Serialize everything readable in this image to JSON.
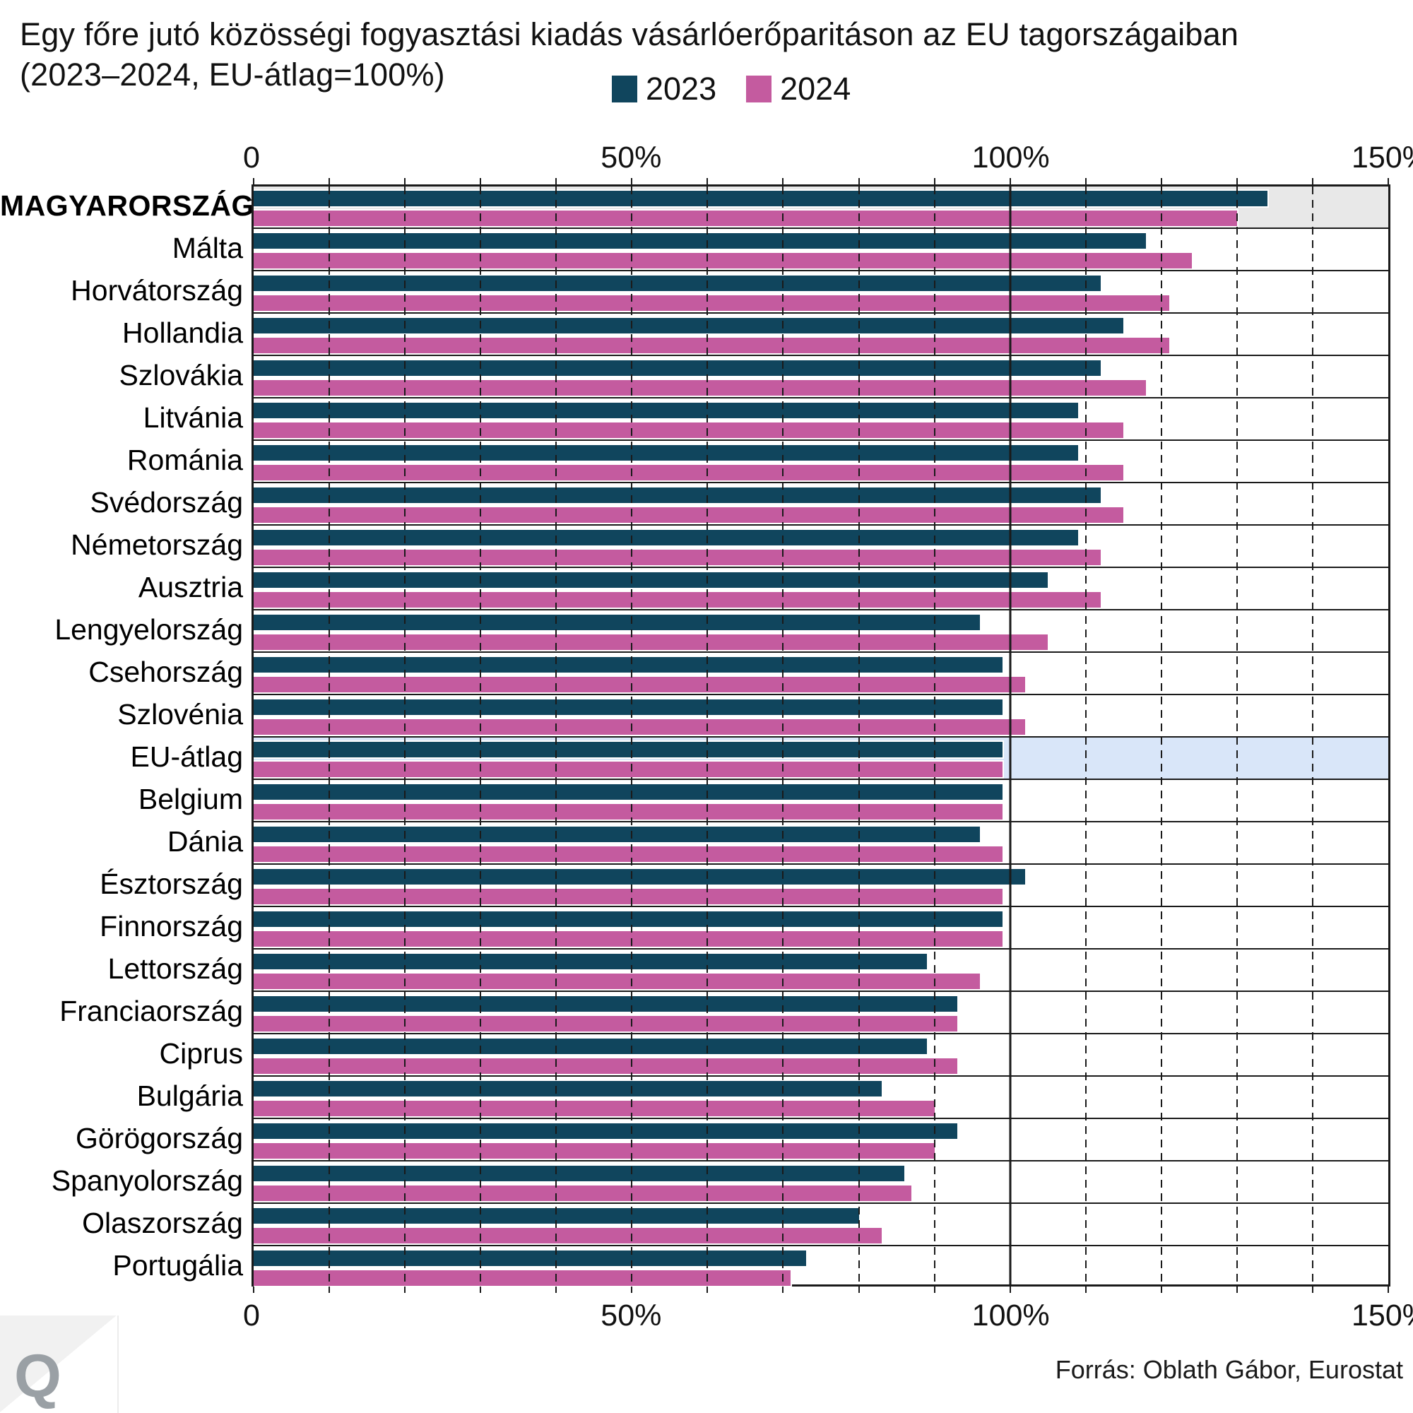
{
  "page": {
    "title_line1": "Egy főre jutó közösségi fogyasztási kiadás vásárlóerőparitáson az EU tagországaiban",
    "title_line2": "(2023–2024, EU-átlag=100%)",
    "source": "Forrás: Oblath Gábor, Eurostat",
    "logo_letter": "Q"
  },
  "legend": {
    "items": [
      {
        "label": "2023",
        "color": "#10455d"
      },
      {
        "label": "2024",
        "color": "#c45b9f"
      }
    ]
  },
  "axis": {
    "min": 0,
    "max": 150,
    "tick_values": [
      0,
      50,
      100,
      150
    ],
    "tick_labels": [
      "0",
      "50%",
      "100%",
      "150%"
    ],
    "grid_step": 10,
    "solid_line_at": 100
  },
  "colors": {
    "bar_2023": "#10455d",
    "bar_2024": "#c45b9f",
    "row_highlight_hungary": "#e8e8e8",
    "row_highlight_eu": "#d9e6f9",
    "grid": "#1a1a1a"
  },
  "chart_data": {
    "type": "bar",
    "orientation": "horizontal",
    "title": "Egy főre jutó közösségi fogyasztási kiadás vásárlóerőparitáson az EU tagországaiban (2023–2024, EU-átlag=100%)",
    "xlim": [
      0,
      150
    ],
    "grid": "dashed vertical every 10%, solid line at 100%",
    "legend_position": "top",
    "categories": [
      "MAGYARORSZÁG",
      "Málta",
      "Horvátország",
      "Hollandia",
      "Szlovákia",
      "Litvánia",
      "Románia",
      "Svédország",
      "Németország",
      "Ausztria",
      "Lengyelország",
      "Csehország",
      "Szlovénia",
      "EU-átlag",
      "Belgium",
      "Dánia",
      "Észtország",
      "Finnország",
      "Lettország",
      "Franciaország",
      "Ciprus",
      "Bulgária",
      "Görögország",
      "Spanyolország",
      "Olaszország",
      "Portugália"
    ],
    "series": [
      {
        "name": "2023",
        "color": "#10455d",
        "values": [
          134,
          118,
          112,
          115,
          112,
          109,
          109,
          112,
          109,
          105,
          96,
          99,
          99,
          99,
          99,
          96,
          102,
          99,
          89,
          93,
          89,
          83,
          93,
          86,
          80,
          73
        ]
      },
      {
        "name": "2024",
        "color": "#c45b9f",
        "values": [
          130,
          124,
          121,
          121,
          118,
          115,
          115,
          115,
          112,
          112,
          105,
          102,
          102,
          99,
          99,
          99,
          99,
          99,
          96,
          93,
          93,
          90,
          90,
          87,
          83,
          71
        ]
      }
    ],
    "highlighted_rows": [
      {
        "category": "MAGYARORSZÁG",
        "background": "#e8e8e8",
        "label_style": "bold-uppercase"
      },
      {
        "category": "EU-átlag",
        "background": "#d9e6f9",
        "label_style": "normal"
      }
    ]
  }
}
